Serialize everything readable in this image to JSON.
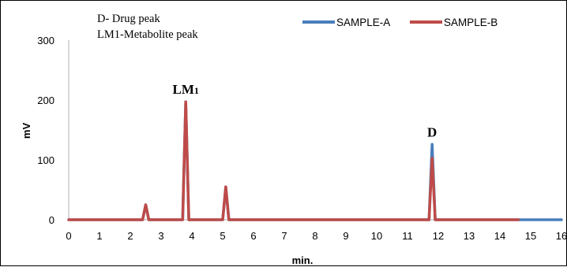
{
  "chart_data": {
    "type": "line",
    "title": "",
    "xlabel": "min.",
    "ylabel": "mV",
    "xlim": [
      0,
      16
    ],
    "ylim": [
      0,
      300
    ],
    "x_ticks": [
      "0",
      "1",
      "2",
      "3",
      "4",
      "5",
      "6",
      "7",
      "8",
      "9",
      "10",
      "11",
      "12",
      "13",
      "14",
      "15",
      "16"
    ],
    "y_ticks": [
      "0",
      "100",
      "200",
      "300"
    ],
    "grid": false,
    "legend_position": "top",
    "notes": [
      "D- Drug peak",
      "LM1-Metabolite peak"
    ],
    "peak_labels": [
      {
        "text": "LM1",
        "x": 3.8,
        "y": 200
      },
      {
        "text": "D",
        "x": 11.8,
        "y": 128
      }
    ],
    "series": [
      {
        "name": "SAMPLE-A",
        "color": "#4a7ebb",
        "x": [
          0,
          2.4,
          2.5,
          2.6,
          3.7,
          3.8,
          3.9,
          5.0,
          5.1,
          5.2,
          11.7,
          11.8,
          11.9,
          16
        ],
        "y": [
          0,
          0,
          25,
          0,
          0,
          197,
          0,
          0,
          55,
          0,
          0,
          126,
          0,
          0
        ]
      },
      {
        "name": "SAMPLE-B",
        "color": "#be4b48",
        "x": [
          0,
          2.4,
          2.5,
          2.6,
          3.7,
          3.8,
          3.9,
          5.0,
          5.1,
          5.2,
          11.7,
          11.8,
          11.9,
          14.6
        ],
        "y": [
          0,
          0,
          25,
          0,
          0,
          197,
          0,
          0,
          55,
          0,
          0,
          103,
          0,
          0
        ]
      }
    ]
  }
}
